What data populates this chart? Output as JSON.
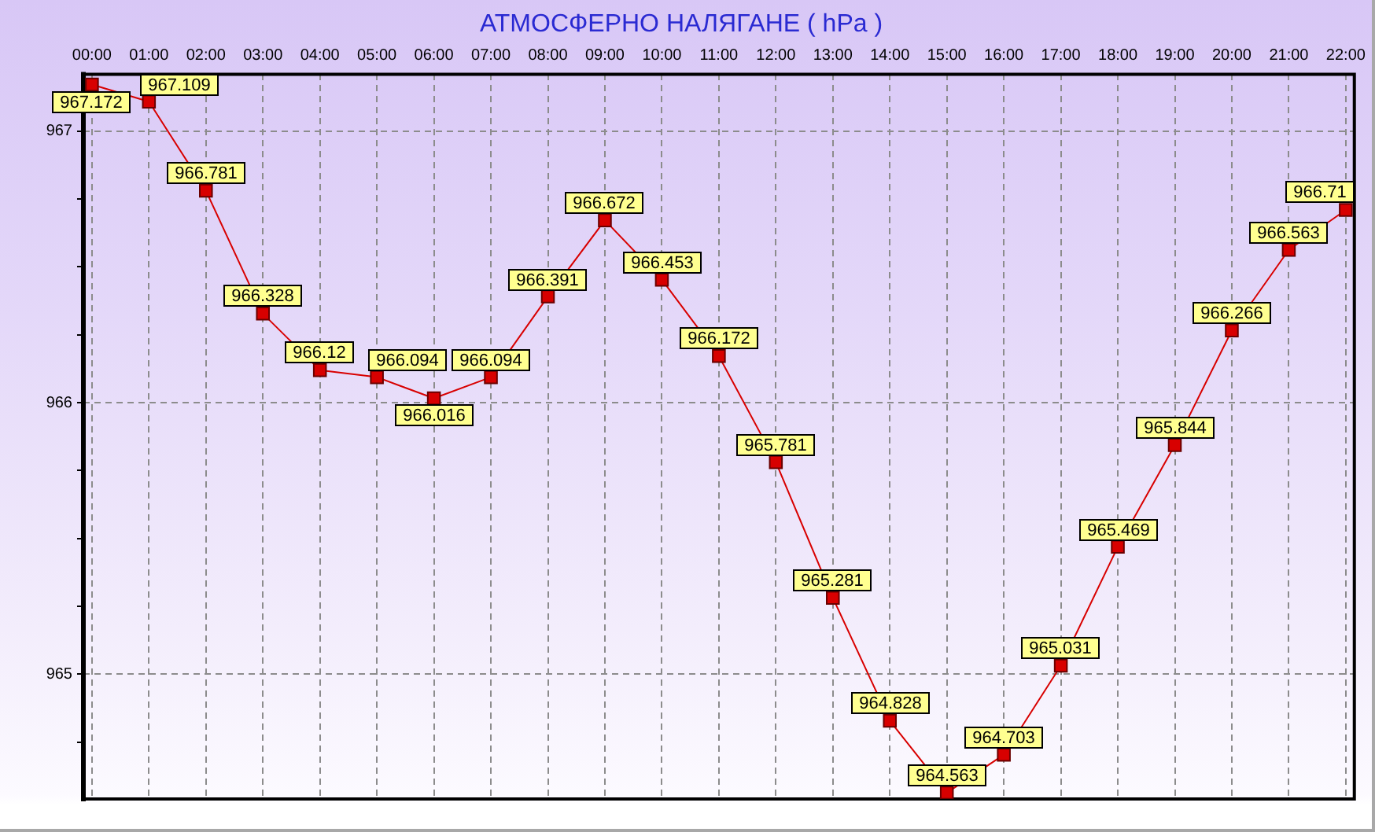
{
  "chart_data": {
    "type": "line",
    "title": "АТМОСФЕРНО НАЛЯГАНЕ ( hPa )",
    "categories": [
      "00:00",
      "01:00",
      "02:00",
      "03:00",
      "04:00",
      "05:00",
      "06:00",
      "07:00",
      "08:00",
      "09:00",
      "10:00",
      "11:00",
      "12:00",
      "13:00",
      "14:00",
      "15:00",
      "16:00",
      "17:00",
      "18:00",
      "19:00",
      "20:00",
      "21:00",
      "22:00"
    ],
    "series": [
      {
        "color": "#d80000",
        "values": [
          967.172,
          967.109,
          966.781,
          966.328,
          966.12,
          966.094,
          966.016,
          966.094,
          966.391,
          966.672,
          966.453,
          966.172,
          965.781,
          965.281,
          964.828,
          964.563,
          964.703,
          965.031,
          965.469,
          965.844,
          966.266,
          966.563,
          966.71
        ]
      }
    ],
    "ylim": [
      964.54,
      967.21
    ],
    "yticks": [
      {
        "value": 964.75,
        "label": null
      },
      965,
      {
        "value": 965.25,
        "label": null
      },
      {
        "value": 965.5,
        "label": null
      },
      {
        "value": 965.75,
        "label": null
      },
      966,
      {
        "value": 966.25,
        "label": null
      },
      {
        "value": 966.5,
        "label": null
      },
      {
        "value": 966.75,
        "label": null
      },
      967
    ],
    "grid": true,
    "marker": "square",
    "line_style": "solid",
    "data_labels": true
  }
}
